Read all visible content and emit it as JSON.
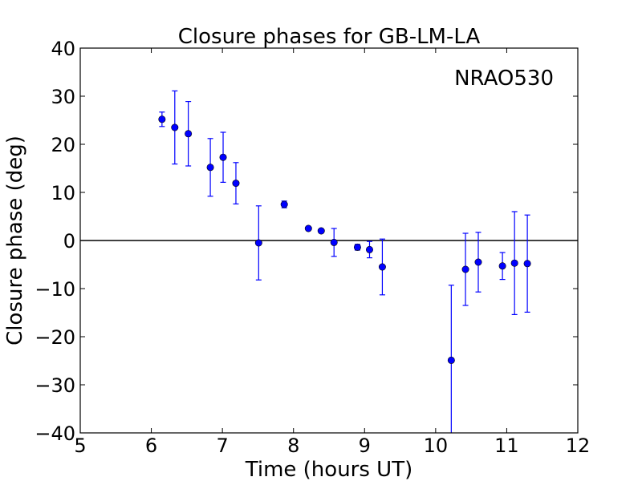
{
  "chart_data": {
    "type": "scatter",
    "title": "Closure phases for GB-LM-LA",
    "xlabel": "Time (hours UT)",
    "ylabel": "Closure phase (deg)",
    "annotation": "NRAO530",
    "xlim": [
      5,
      12
    ],
    "ylim": [
      -40,
      40
    ],
    "xticks": [
      5,
      6,
      7,
      8,
      9,
      10,
      11,
      12
    ],
    "yticks": [
      -40,
      -30,
      -20,
      -10,
      0,
      10,
      20,
      30,
      40
    ],
    "xtick_labels": [
      "5",
      "6",
      "7",
      "8",
      "9",
      "10",
      "11",
      "12"
    ],
    "ytick_labels": [
      "−40",
      "−30",
      "−20",
      "−10",
      "0",
      "10",
      "20",
      "30",
      "40"
    ],
    "reference_line_y": 0,
    "grid": false,
    "marker_color": "#0000ff",
    "points": [
      {
        "x": 6.15,
        "y": 25.2,
        "err": 1.5
      },
      {
        "x": 6.33,
        "y": 23.5,
        "err": 7.6
      },
      {
        "x": 6.52,
        "y": 22.2,
        "err": 6.7
      },
      {
        "x": 6.83,
        "y": 15.2,
        "err": 6.0
      },
      {
        "x": 7.01,
        "y": 17.3,
        "err": 5.2
      },
      {
        "x": 7.19,
        "y": 11.9,
        "err": 4.3
      },
      {
        "x": 7.51,
        "y": -0.5,
        "err": 7.7
      },
      {
        "x": 7.87,
        "y": 7.5,
        "err": 0.7
      },
      {
        "x": 8.21,
        "y": 2.5,
        "err": 0.3
      },
      {
        "x": 8.39,
        "y": 2.0,
        "err": 0.3
      },
      {
        "x": 8.57,
        "y": -0.4,
        "err": 2.9
      },
      {
        "x": 8.9,
        "y": -1.4,
        "err": 0.6
      },
      {
        "x": 9.07,
        "y": -1.9,
        "err": 1.7
      },
      {
        "x": 9.25,
        "y": -5.5,
        "err": 5.8
      },
      {
        "x": 10.22,
        "y": -24.9,
        "err": 15.6
      },
      {
        "x": 10.42,
        "y": -6.0,
        "err": 7.5
      },
      {
        "x": 10.6,
        "y": -4.5,
        "err": 6.2
      },
      {
        "x": 10.94,
        "y": -5.3,
        "err": 2.8
      },
      {
        "x": 11.11,
        "y": -4.7,
        "err": 10.7
      },
      {
        "x": 11.29,
        "y": -4.8,
        "err": 10.1
      }
    ]
  }
}
